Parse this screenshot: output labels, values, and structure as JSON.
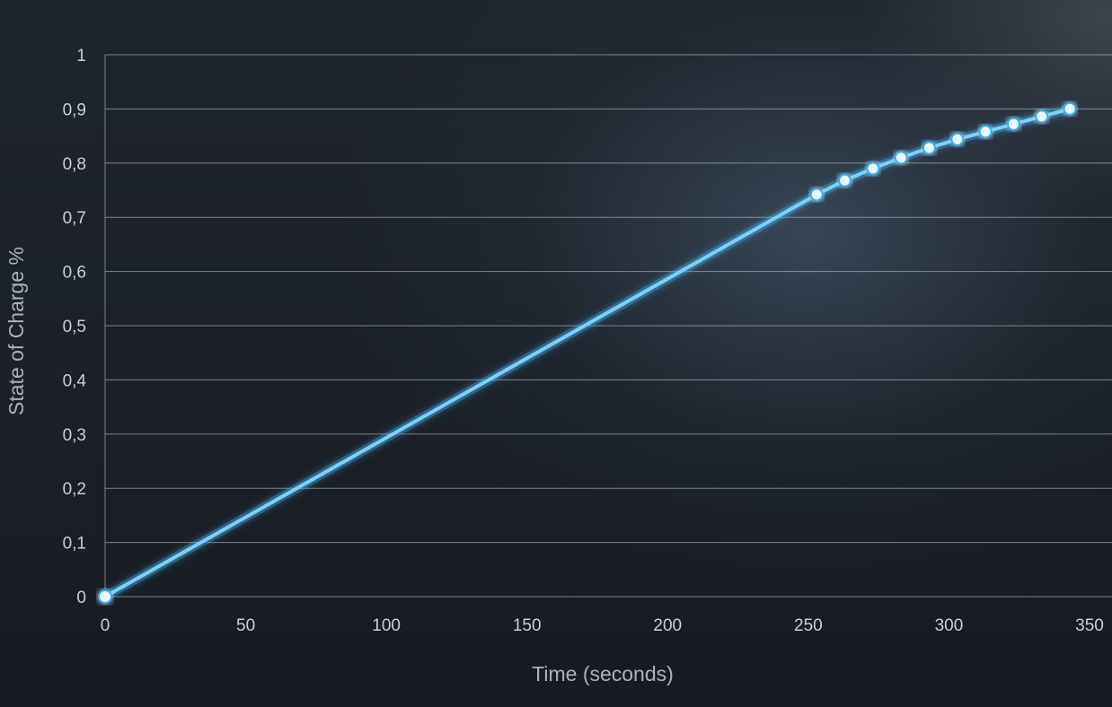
{
  "chart_data": {
    "type": "line",
    "title": "",
    "xlabel": "Time (seconds)",
    "ylabel": "State of Charge %",
    "xlim": [
      0,
      350
    ],
    "ylim": [
      0,
      1
    ],
    "x_ticks": [
      "0",
      "50",
      "100",
      "150",
      "200",
      "250",
      "300",
      "350"
    ],
    "y_ticks": [
      "0",
      "0,1",
      "0,2",
      "0,3",
      "0,4",
      "0,5",
      "0,6",
      "0,7",
      "0,8",
      "0,9",
      "1"
    ],
    "grid": "horizontal",
    "series": [
      {
        "x": [
          0,
          253,
          263,
          273,
          283,
          293,
          303,
          313,
          323,
          333,
          343
        ],
        "y": [
          0,
          0.742,
          0.768,
          0.79,
          0.81,
          0.828,
          0.844,
          0.858,
          0.872,
          0.886,
          0.9
        ],
        "markers_from_index": 1
      }
    ],
    "colors": {
      "line": "#7fd0f5",
      "marker": "#e6f8ff",
      "glow": "#3fa8e6"
    }
  }
}
